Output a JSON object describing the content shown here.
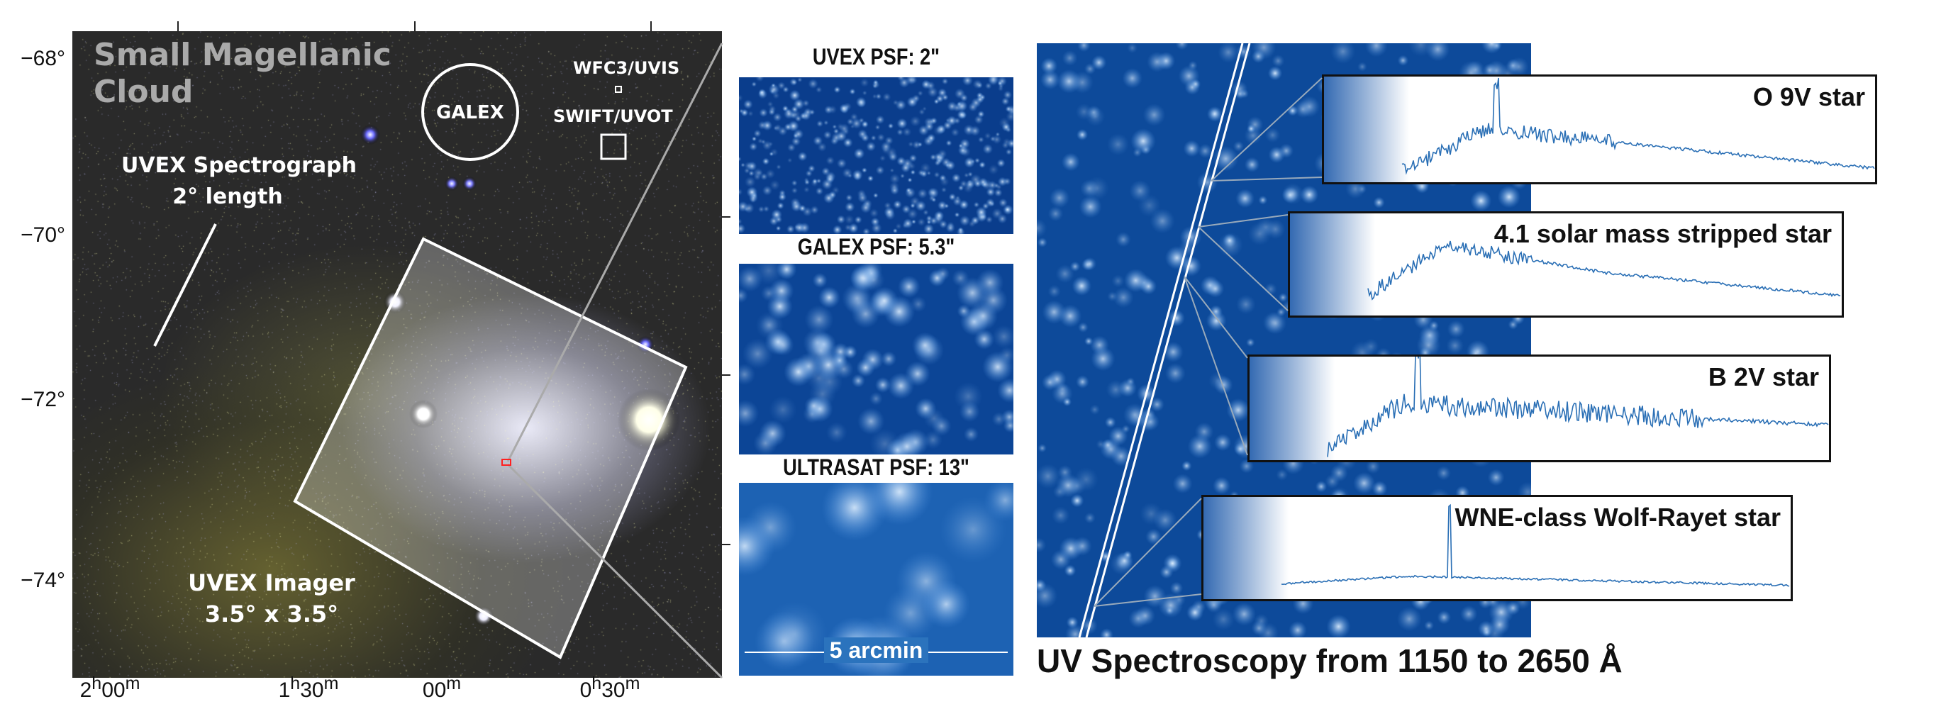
{
  "sky_map": {
    "title_line1": "Small Magellanic",
    "title_line2": "Cloud",
    "galex_label": "GALEX",
    "wfc3_label": "WFC3/UVIS",
    "swift_label": "SWIFT/UVOT",
    "spectrograph_line1": "UVEX Spectrograph",
    "spectrograph_line2": "2° length",
    "imager_line1": "UVEX Imager",
    "imager_line2": "3.5° x 3.5°",
    "y_ticks": [
      "−68°",
      "−70°",
      "−72°",
      "−74°"
    ],
    "x_ticks": [
      {
        "h": "2",
        "hu": "h",
        "m": "00",
        "mu": "m"
      },
      {
        "h": "1",
        "hu": "h",
        "m": "30",
        "mu": "m"
      },
      {
        "h": "",
        "hu": "",
        "m": "00",
        "mu": "m"
      },
      {
        "h": "0",
        "hu": "h",
        "m": "30",
        "mu": "m"
      }
    ],
    "colors": {
      "background": "#2a2a2a",
      "title": "#aaaaaa",
      "marker": "#ff2020"
    }
  },
  "psf_panels": [
    {
      "title": "UVEX  PSF: 2\""
    },
    {
      "title": "GALEX  PSF: 5.3\""
    },
    {
      "title": "ULTRASAT  PSF: 13\""
    }
  ],
  "scale_bar": "5 arcmin",
  "spectra": [
    {
      "label": "O 9V star"
    },
    {
      "label": "4.1 solar mass stripped star"
    },
    {
      "label": "B 2V star"
    },
    {
      "label": "WNE-class Wolf-Rayet star"
    }
  ],
  "caption": "UV Spectroscopy from 1150 to 2650 Å",
  "colors": {
    "spectrum_line": "#2a6fb5",
    "field_blue": "#0b3f8f"
  }
}
